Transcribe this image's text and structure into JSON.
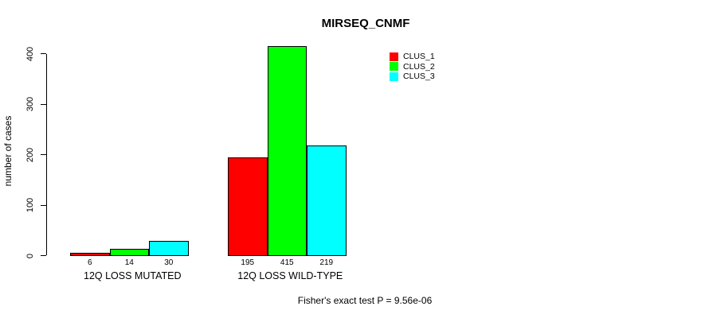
{
  "title": "MIRSEQ_CNMF",
  "footer": "Fisher's exact test P = 9.56e-06",
  "chart_data": {
    "type": "bar",
    "title": "MIRSEQ_CNMF",
    "xlabel": "",
    "ylabel": "number of cases",
    "categories": [
      "12Q LOSS MUTATED",
      "12Q LOSS WILD-TYPE"
    ],
    "series": [
      {
        "name": "CLUS_1",
        "color": "#ff0000",
        "values": [
          6,
          195
        ]
      },
      {
        "name": "CLUS_2",
        "color": "#00ff00",
        "values": [
          14,
          415
        ]
      },
      {
        "name": "CLUS_3",
        "color": "#00ffff",
        "values": [
          30,
          219
        ]
      }
    ],
    "bar_value_labels": [
      [
        "6",
        "14",
        "30"
      ],
      [
        "195",
        "415",
        "219"
      ]
    ],
    "yticks": [
      0,
      100,
      200,
      300,
      400
    ],
    "ylim": [
      0,
      400
    ],
    "grid": false,
    "bar_border_color": "#000000",
    "legend_position": "top-right",
    "legend_entries": [
      "CLUS_1",
      "CLUS_2",
      "CLUS_3"
    ],
    "annotation": "Fisher's exact test P = 9.56e-06"
  }
}
